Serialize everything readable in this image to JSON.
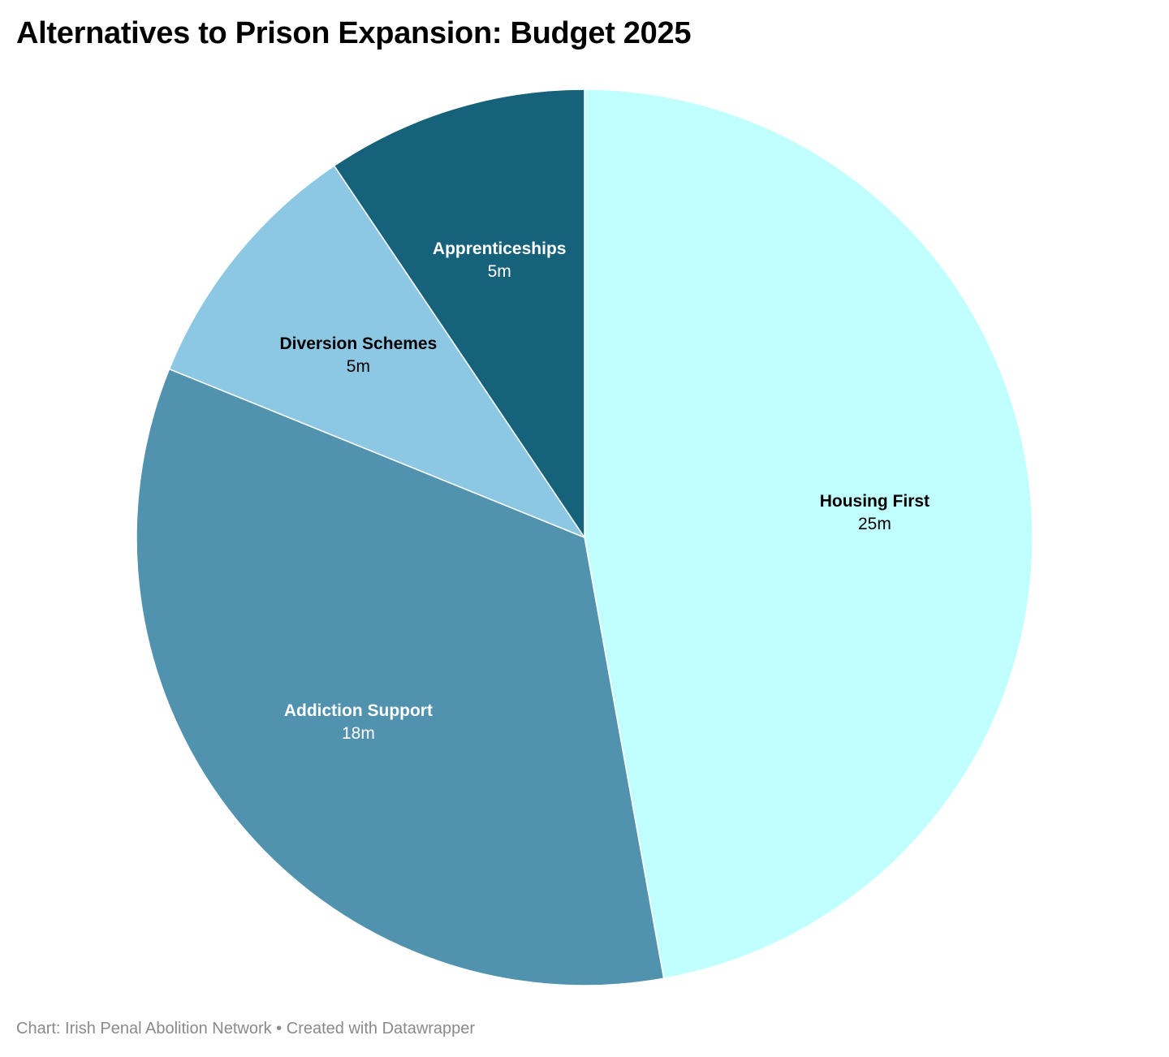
{
  "title": "Alternatives to Prison Expansion: Budget 2025",
  "footer": {
    "source_prefix": "Chart:",
    "source": "Irish Penal Abolition Network",
    "separator": "•",
    "credit": "Created with Datawrapper"
  },
  "chart_data": {
    "type": "pie",
    "title": "Alternatives to Prison Expansion: Budget 2025",
    "unit_suffix": "m",
    "start": "12 o'clock",
    "direction": "clockwise",
    "slices": [
      {
        "label": "Housing First",
        "value": 25,
        "value_label": "25m",
        "color": "#c1ffff",
        "text_color": "#000000"
      },
      {
        "label": "Addiction Support",
        "value": 18,
        "value_label": "18m",
        "color": "#5192ae",
        "text_color": "#ffffff"
      },
      {
        "label": "Diversion Schemes",
        "value": 5,
        "value_label": "5m",
        "color": "#8cc8e4",
        "text_color": "#000000"
      },
      {
        "label": "Apprenticeships",
        "value": 5,
        "value_label": "5m",
        "color": "#17627b",
        "text_color": "#ffffff"
      }
    ]
  }
}
